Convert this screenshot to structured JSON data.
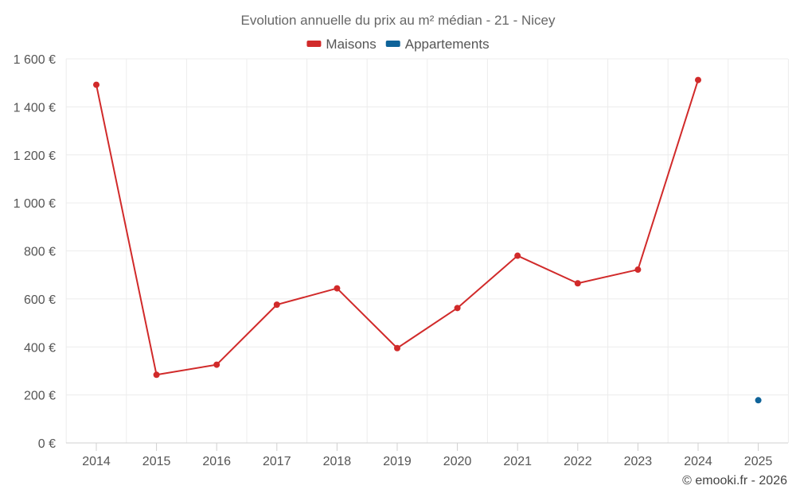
{
  "chart_data": {
    "type": "line",
    "title": "Evolution annuelle du prix au m² médian - 21 - Nicey",
    "categories": [
      "2014",
      "2015",
      "2016",
      "2017",
      "2018",
      "2019",
      "2020",
      "2021",
      "2022",
      "2023",
      "2024",
      "2025"
    ],
    "series": [
      {
        "name": "Maisons",
        "color": "#d12a2a",
        "values": [
          1492,
          284,
          326,
          576,
          644,
          395,
          562,
          780,
          665,
          722,
          1512,
          null
        ]
      },
      {
        "name": "Appartements",
        "color": "#0f6399",
        "values": [
          null,
          null,
          null,
          null,
          null,
          null,
          null,
          null,
          null,
          null,
          null,
          178
        ]
      }
    ],
    "ylim": [
      0,
      1600
    ],
    "yticks": [
      0,
      200,
      400,
      600,
      800,
      1000,
      1200,
      1400,
      1600
    ],
    "ytick_labels": [
      "0 €",
      "200 €",
      "400 €",
      "600 €",
      "800 €",
      "1 000 €",
      "1 200 €",
      "1 400 €",
      "1 600 €"
    ],
    "xlabel": "",
    "ylabel": "",
    "legend_position": "top-center",
    "grid": true
  },
  "credit": "© emooki.fr - 2026"
}
